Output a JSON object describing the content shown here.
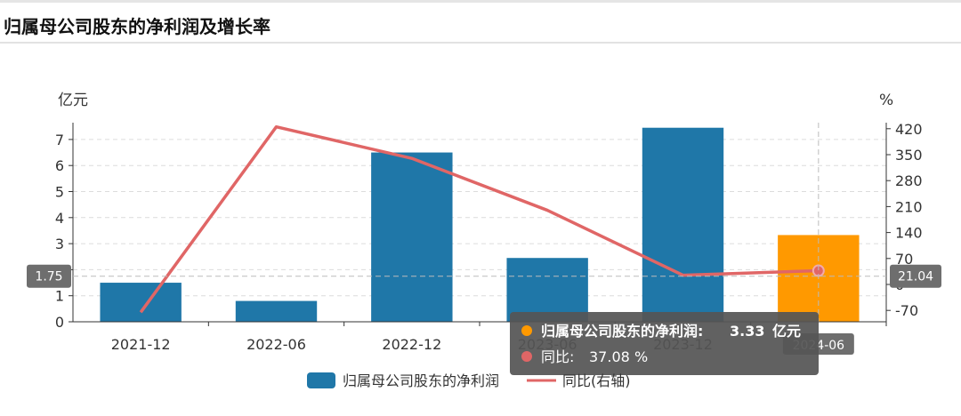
{
  "title": "归属母公司股东的净利润及增长率",
  "chart_data": {
    "type": "bar",
    "categories": [
      "2021-12",
      "2022-06",
      "2022-12",
      "2023-06",
      "2023-12",
      "2024-06"
    ],
    "series": [
      {
        "name": "归属母公司股东的净利润",
        "type": "bar",
        "axis": "left",
        "values": [
          1.5,
          0.8,
          6.5,
          2.45,
          7.45,
          3.33
        ],
        "color": "#1f77a8",
        "highlight_color": "#ff9900",
        "highlight_index": 5
      },
      {
        "name": "同比(右轴)",
        "type": "line",
        "axis": "right",
        "values": [
          -75,
          425,
          340,
          200,
          25,
          37.08
        ],
        "color": "#e06666"
      }
    ],
    "left_axis": {
      "unit": "亿元",
      "min": 0,
      "max": 7,
      "ticks": [
        0,
        1,
        2,
        3,
        4,
        5,
        6,
        7
      ]
    },
    "right_axis": {
      "unit": "%",
      "ticks": [
        -70,
        0,
        70,
        140,
        210,
        280,
        350,
        420
      ]
    },
    "pointer": {
      "left_label": "1.75",
      "right_label": "21.04",
      "category_label": "2024-06"
    },
    "tooltip": {
      "line1_name": "归属母公司股东的净利润",
      "line1_value": "3.33",
      "line1_unit": "亿元",
      "line2_name": "同比",
      "line2_value": "37.08",
      "line2_unit": "%"
    },
    "legend": {
      "bar_label": "归属母公司股东的净利润",
      "line_label": "同比(右轴)",
      "position": "bottom"
    },
    "grid": true
  }
}
